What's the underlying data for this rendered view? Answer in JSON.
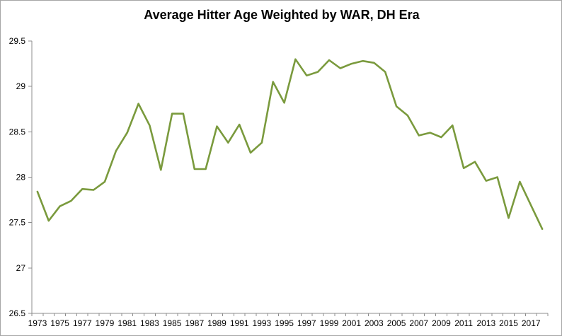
{
  "window": {
    "background": "#ffffff",
    "border_color": "#a6a6a6"
  },
  "chart_data": {
    "type": "line",
    "title": "Average Hitter Age Weighted by WAR, DH Era",
    "xlabel": "",
    "ylabel": "",
    "legend_position": "none",
    "grid": false,
    "ylim": [
      26.5,
      29.5
    ],
    "y_ticks": [
      "26.5",
      "27",
      "27.5",
      "28",
      "28.5",
      "29",
      "29.5"
    ],
    "x_tick_labels": [
      "1973",
      "1975",
      "1977",
      "1979",
      "1981",
      "1983",
      "1985",
      "1987",
      "1989",
      "1991",
      "1993",
      "1995",
      "1997",
      "1999",
      "2001",
      "2003",
      "2005",
      "2007",
      "2009",
      "2011",
      "2013",
      "2015",
      "2017"
    ],
    "categories": [
      1973,
      1974,
      1975,
      1976,
      1977,
      1978,
      1979,
      1980,
      1981,
      1982,
      1983,
      1984,
      1985,
      1986,
      1987,
      1988,
      1989,
      1990,
      1991,
      1992,
      1993,
      1994,
      1995,
      1996,
      1997,
      1998,
      1999,
      2000,
      2001,
      2002,
      2003,
      2004,
      2005,
      2006,
      2007,
      2008,
      2009,
      2010,
      2011,
      2012,
      2013,
      2014,
      2015,
      2016,
      2017,
      2018
    ],
    "values": [
      27.84,
      27.52,
      27.68,
      27.74,
      27.87,
      27.86,
      27.95,
      28.29,
      28.49,
      28.81,
      28.57,
      28.08,
      28.7,
      28.7,
      28.09,
      28.09,
      28.56,
      28.38,
      28.58,
      28.27,
      28.38,
      29.05,
      28.82,
      29.3,
      29.12,
      29.16,
      29.29,
      29.2,
      29.25,
      29.28,
      29.26,
      29.16,
      28.78,
      28.68,
      28.46,
      28.49,
      28.44,
      28.57,
      28.1,
      28.17,
      27.96,
      28.0,
      27.55,
      27.95,
      27.69,
      27.43
    ],
    "colors": {
      "line": "#7a9a3d",
      "axis": "#8c8c8c",
      "tick_text": "#000000",
      "title_text": "#000000"
    }
  }
}
